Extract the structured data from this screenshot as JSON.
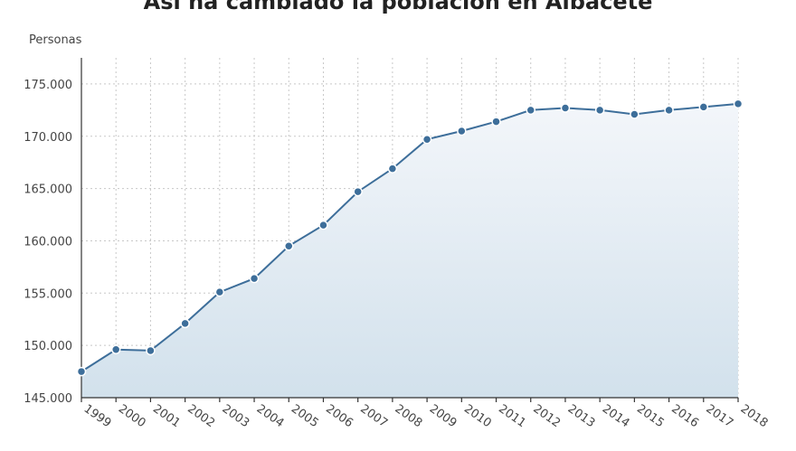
{
  "chart_data": {
    "type": "line",
    "title": "Así ha cambiado la población en Albacete",
    "ylabel": "Personas",
    "xlabel": "",
    "ylim": [
      145000,
      177500
    ],
    "yticks": [
      145000,
      150000,
      155000,
      160000,
      165000,
      170000,
      175000
    ],
    "ytick_labels": [
      "145.000",
      "150.000",
      "155.000",
      "160.000",
      "165.000",
      "170.000",
      "175.000"
    ],
    "grid": true,
    "area_fill": true,
    "colors": {
      "line": "#3d6e9a",
      "area_top": "#f3f6fa",
      "area_bottom": "#d2e1ec"
    },
    "x": [
      "1999",
      "2000",
      "2001",
      "2002",
      "2003",
      "2004",
      "2005",
      "2006",
      "2007",
      "2008",
      "2009",
      "2010",
      "2011",
      "2012",
      "2013",
      "2014",
      "2015",
      "2016",
      "2017",
      "2018"
    ],
    "series": [
      {
        "values": [
          147500,
          149600,
          149500,
          152100,
          155100,
          156400,
          159500,
          161500,
          164700,
          166900,
          169700,
          170500,
          171400,
          172500,
          172700,
          172500,
          172100,
          172500,
          172800,
          173100
        ]
      }
    ]
  }
}
